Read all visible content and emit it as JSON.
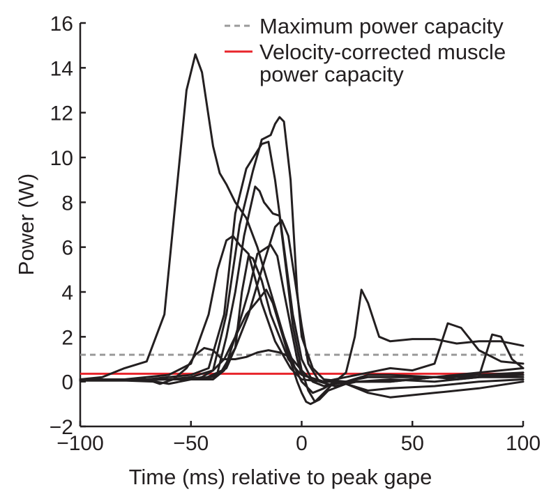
{
  "chart_data": {
    "type": "line",
    "title": "",
    "xlabel": "Time (ms) relative to peak gape",
    "ylabel": "Power (W)",
    "xlim": [
      -100,
      100
    ],
    "ylim": [
      -2,
      16
    ],
    "xticks": [
      -100,
      -50,
      0,
      50,
      100
    ],
    "xtick_labels": [
      "−100",
      "−50",
      "0",
      "50",
      "100"
    ],
    "yticks": [
      -2,
      0,
      2,
      4,
      6,
      8,
      10,
      12,
      14,
      16
    ],
    "ytick_labels": [
      "−2",
      "0",
      "2",
      "4",
      "6",
      "8",
      "10",
      "12",
      "14",
      "16"
    ],
    "grid": false,
    "legend_position": "top-right",
    "reference_lines": [
      {
        "name": "Maximum power capacity",
        "y": 1.2,
        "style": "dashed",
        "color": "#9a9a9a"
      },
      {
        "name": "Velocity-corrected muscle power capacity",
        "y": 0.35,
        "style": "solid",
        "color": "#e8242b"
      }
    ],
    "legend": [
      {
        "label": "Maximum power capacity",
        "style": "dashed",
        "color": "#9a9a9a"
      },
      {
        "label": "Velocity-corrected muscle",
        "label_line2": "power capacity",
        "style": "solid",
        "color": "#e8242b"
      }
    ],
    "series": [
      {
        "color": "#231f20",
        "points": [
          [
            -100,
            0.1
          ],
          [
            -90,
            0.2
          ],
          [
            -80,
            0.6
          ],
          [
            -70,
            0.9
          ],
          [
            -62,
            3
          ],
          [
            -56,
            9
          ],
          [
            -52,
            13
          ],
          [
            -48,
            14.6
          ],
          [
            -45,
            13.8
          ],
          [
            -40,
            10.5
          ],
          [
            -37,
            9.3
          ],
          [
            -34,
            8.8
          ],
          [
            -30,
            8
          ],
          [
            -25,
            7.3
          ],
          [
            -20,
            6
          ],
          [
            -14,
            4
          ],
          [
            -8,
            2
          ],
          [
            -3,
            0.6
          ],
          [
            0,
            0
          ],
          [
            5,
            -0.5
          ],
          [
            10,
            -0.3
          ],
          [
            15,
            0
          ],
          [
            20,
            0.4
          ],
          [
            24,
            2
          ],
          [
            27,
            4.1
          ],
          [
            30,
            3.5
          ],
          [
            35,
            2
          ],
          [
            40,
            1.8
          ],
          [
            50,
            1.9
          ],
          [
            60,
            1.9
          ],
          [
            70,
            1.7
          ],
          [
            80,
            1.8
          ],
          [
            90,
            1.8
          ],
          [
            100,
            1.6
          ]
        ]
      },
      {
        "color": "#231f20",
        "points": [
          [
            -100,
            0.1
          ],
          [
            -80,
            0.1
          ],
          [
            -70,
            0.2
          ],
          [
            -60,
            0.3
          ],
          [
            -50,
            0.8
          ],
          [
            -42,
            3
          ],
          [
            -38,
            5
          ],
          [
            -34,
            6.3
          ],
          [
            -31,
            6.5
          ],
          [
            -28,
            6.1
          ],
          [
            -24,
            5.7
          ],
          [
            -18,
            3.5
          ],
          [
            -12,
            1.8
          ],
          [
            -5,
            0.6
          ],
          [
            0,
            0.1
          ],
          [
            10,
            0
          ],
          [
            20,
            0.2
          ],
          [
            30,
            0.4
          ],
          [
            40,
            0.6
          ],
          [
            50,
            0.5
          ],
          [
            60,
            0.8
          ],
          [
            66,
            2.6
          ],
          [
            72,
            2.4
          ],
          [
            80,
            1.4
          ],
          [
            90,
            0.9
          ],
          [
            100,
            0.8
          ]
        ]
      },
      {
        "color": "#231f20",
        "points": [
          [
            -100,
            0.1
          ],
          [
            -70,
            0.1
          ],
          [
            -60,
            0.2
          ],
          [
            -50,
            0.3
          ],
          [
            -42,
            0.6
          ],
          [
            -35,
            3
          ],
          [
            -30,
            7.5
          ],
          [
            -25,
            9.5
          ],
          [
            -18,
            10.6
          ],
          [
            -15,
            10.7
          ],
          [
            -12,
            9
          ],
          [
            -8,
            6
          ],
          [
            -4,
            3
          ],
          [
            0,
            1
          ],
          [
            5,
            0
          ],
          [
            10,
            -0.2
          ],
          [
            20,
            0
          ],
          [
            30,
            0.2
          ],
          [
            40,
            0.2
          ],
          [
            60,
            0.2
          ],
          [
            80,
            0.4
          ],
          [
            100,
            0.6
          ]
        ]
      },
      {
        "color": "#231f20",
        "points": [
          [
            -100,
            0.1
          ],
          [
            -60,
            0.1
          ],
          [
            -50,
            0.2
          ],
          [
            -40,
            0.5
          ],
          [
            -34,
            3
          ],
          [
            -28,
            7
          ],
          [
            -22,
            9.4
          ],
          [
            -18,
            10.8
          ],
          [
            -14,
            11
          ],
          [
            -12,
            11.5
          ],
          [
            -10,
            11.8
          ],
          [
            -8,
            11.6
          ],
          [
            -5,
            9
          ],
          [
            -2,
            4
          ],
          [
            0,
            2
          ],
          [
            5,
            0.6
          ],
          [
            10,
            0.1
          ],
          [
            20,
            0
          ],
          [
            30,
            0
          ],
          [
            50,
            0.1
          ],
          [
            60,
            0.2
          ],
          [
            70,
            0.1
          ],
          [
            80,
            0.2
          ],
          [
            86,
            2.1
          ],
          [
            90,
            2
          ],
          [
            95,
            1
          ],
          [
            100,
            0.6
          ]
        ]
      },
      {
        "color": "#231f20",
        "points": [
          [
            -100,
            0.05
          ],
          [
            -60,
            0.1
          ],
          [
            -45,
            0.1
          ],
          [
            -38,
            0.4
          ],
          [
            -34,
            2
          ],
          [
            -30,
            4
          ],
          [
            -26,
            6.5
          ],
          [
            -21,
            8.7
          ],
          [
            -19,
            8.5
          ],
          [
            -17,
            8
          ],
          [
            -13,
            7.5
          ],
          [
            -10,
            7.4
          ],
          [
            -7,
            5
          ],
          [
            -4,
            2.5
          ],
          [
            0,
            0.5
          ],
          [
            5,
            0
          ],
          [
            10,
            -0.2
          ],
          [
            20,
            0
          ],
          [
            40,
            0
          ],
          [
            60,
            0.2
          ],
          [
            80,
            0.2
          ],
          [
            100,
            0.3
          ]
        ]
      },
      {
        "color": "#231f20",
        "points": [
          [
            -100,
            0.05
          ],
          [
            -60,
            0.1
          ],
          [
            -40,
            0.2
          ],
          [
            -34,
            0.6
          ],
          [
            -30,
            1.5
          ],
          [
            -27,
            4
          ],
          [
            -24,
            5.6
          ],
          [
            -22,
            5.5
          ],
          [
            -18,
            4.5
          ],
          [
            -14,
            3
          ],
          [
            -10,
            2
          ],
          [
            -6,
            1
          ],
          [
            -2,
            0.5
          ],
          [
            0,
            0.3
          ],
          [
            10,
            0
          ],
          [
            20,
            0
          ],
          [
            30,
            0.3
          ],
          [
            40,
            0.3
          ],
          [
            60,
            0.2
          ],
          [
            80,
            0.3
          ],
          [
            100,
            0.3
          ]
        ]
      },
      {
        "color": "#231f20",
        "points": [
          [
            -100,
            0.05
          ],
          [
            -60,
            0.1
          ],
          [
            -40,
            0.1
          ],
          [
            -35,
            0.5
          ],
          [
            -30,
            2
          ],
          [
            -24,
            4
          ],
          [
            -20,
            5.7
          ],
          [
            -14,
            6.1
          ],
          [
            -11,
            5.6
          ],
          [
            -8,
            4
          ],
          [
            -5,
            2.5
          ],
          [
            -2,
            1
          ],
          [
            0,
            0.3
          ],
          [
            10,
            0
          ],
          [
            20,
            0
          ],
          [
            40,
            0
          ],
          [
            60,
            0.2
          ],
          [
            80,
            0.3
          ],
          [
            100,
            0.4
          ]
        ]
      },
      {
        "color": "#231f20",
        "points": [
          [
            -100,
            0.05
          ],
          [
            -70,
            0.1
          ],
          [
            -50,
            0.1
          ],
          [
            -42,
            0.2
          ],
          [
            -36,
            0.5
          ],
          [
            -30,
            1.5
          ],
          [
            -24,
            3
          ],
          [
            -18,
            5
          ],
          [
            -12,
            6.9
          ],
          [
            -9,
            7.2
          ],
          [
            -6,
            6.5
          ],
          [
            -3,
            4.5
          ],
          [
            0,
            2.5
          ],
          [
            3,
            0.8
          ],
          [
            8,
            0
          ],
          [
            15,
            -0.2
          ],
          [
            25,
            0
          ],
          [
            40,
            0.1
          ],
          [
            60,
            0
          ],
          [
            80,
            0.2
          ],
          [
            100,
            0.2
          ]
        ]
      },
      {
        "color": "#231f20",
        "points": [
          [
            -100,
            0.05
          ],
          [
            -80,
            0.05
          ],
          [
            -70,
            0.1
          ],
          [
            -64,
            -0.1
          ],
          [
            -58,
            0.1
          ],
          [
            -52,
            0.6
          ],
          [
            -48,
            1.2
          ],
          [
            -44,
            1.5
          ],
          [
            -40,
            1.4
          ],
          [
            -36,
            1
          ],
          [
            -30,
            1
          ],
          [
            -25,
            1.1
          ],
          [
            -20,
            1.3
          ],
          [
            -15,
            1.4
          ],
          [
            -10,
            1.3
          ],
          [
            -5,
            1.1
          ],
          [
            0,
            0.5
          ],
          [
            3,
            -0.4
          ],
          [
            6,
            -0.9
          ],
          [
            10,
            -0.5
          ],
          [
            15,
            0
          ],
          [
            20,
            -0.1
          ],
          [
            30,
            -0.4
          ],
          [
            40,
            -0.3
          ],
          [
            60,
            -0.2
          ],
          [
            80,
            0
          ],
          [
            100,
            0.1
          ]
        ]
      },
      {
        "color": "#231f20",
        "points": [
          [
            -100,
            0.05
          ],
          [
            -80,
            0.05
          ],
          [
            -66,
            0
          ],
          [
            -60,
            -0.1
          ],
          [
            -55,
            0
          ],
          [
            -50,
            0.1
          ],
          [
            -45,
            0.2
          ],
          [
            -40,
            0.5
          ],
          [
            -35,
            1
          ],
          [
            -30,
            2
          ],
          [
            -25,
            3
          ],
          [
            -20,
            3.6
          ],
          [
            -16,
            4.1
          ],
          [
            -13,
            3.5
          ],
          [
            -10,
            2.5
          ],
          [
            -6,
            1.2
          ],
          [
            -2,
            0
          ],
          [
            0,
            -0.5
          ],
          [
            2,
            -0.9
          ],
          [
            4,
            -1
          ],
          [
            8,
            -0.8
          ],
          [
            12,
            -0.4
          ],
          [
            20,
            -0.1
          ],
          [
            30,
            -0.5
          ],
          [
            40,
            -0.7
          ],
          [
            50,
            -0.6
          ],
          [
            60,
            -0.5
          ],
          [
            80,
            -0.3
          ],
          [
            100,
            0
          ]
        ]
      }
    ]
  }
}
